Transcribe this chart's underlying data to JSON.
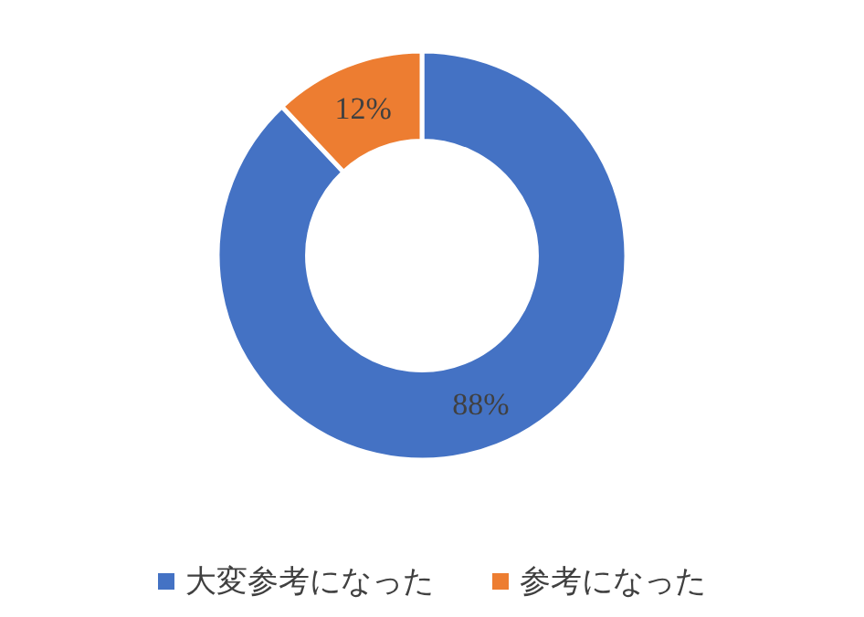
{
  "chart_data": {
    "type": "donut",
    "categories": [
      "大変参考になった",
      "参考になった"
    ],
    "values": [
      88,
      12
    ],
    "colors": [
      "#4472c4",
      "#ed7d31"
    ],
    "value_labels": [
      "88%",
      "12%"
    ],
    "legend": "bottom"
  }
}
